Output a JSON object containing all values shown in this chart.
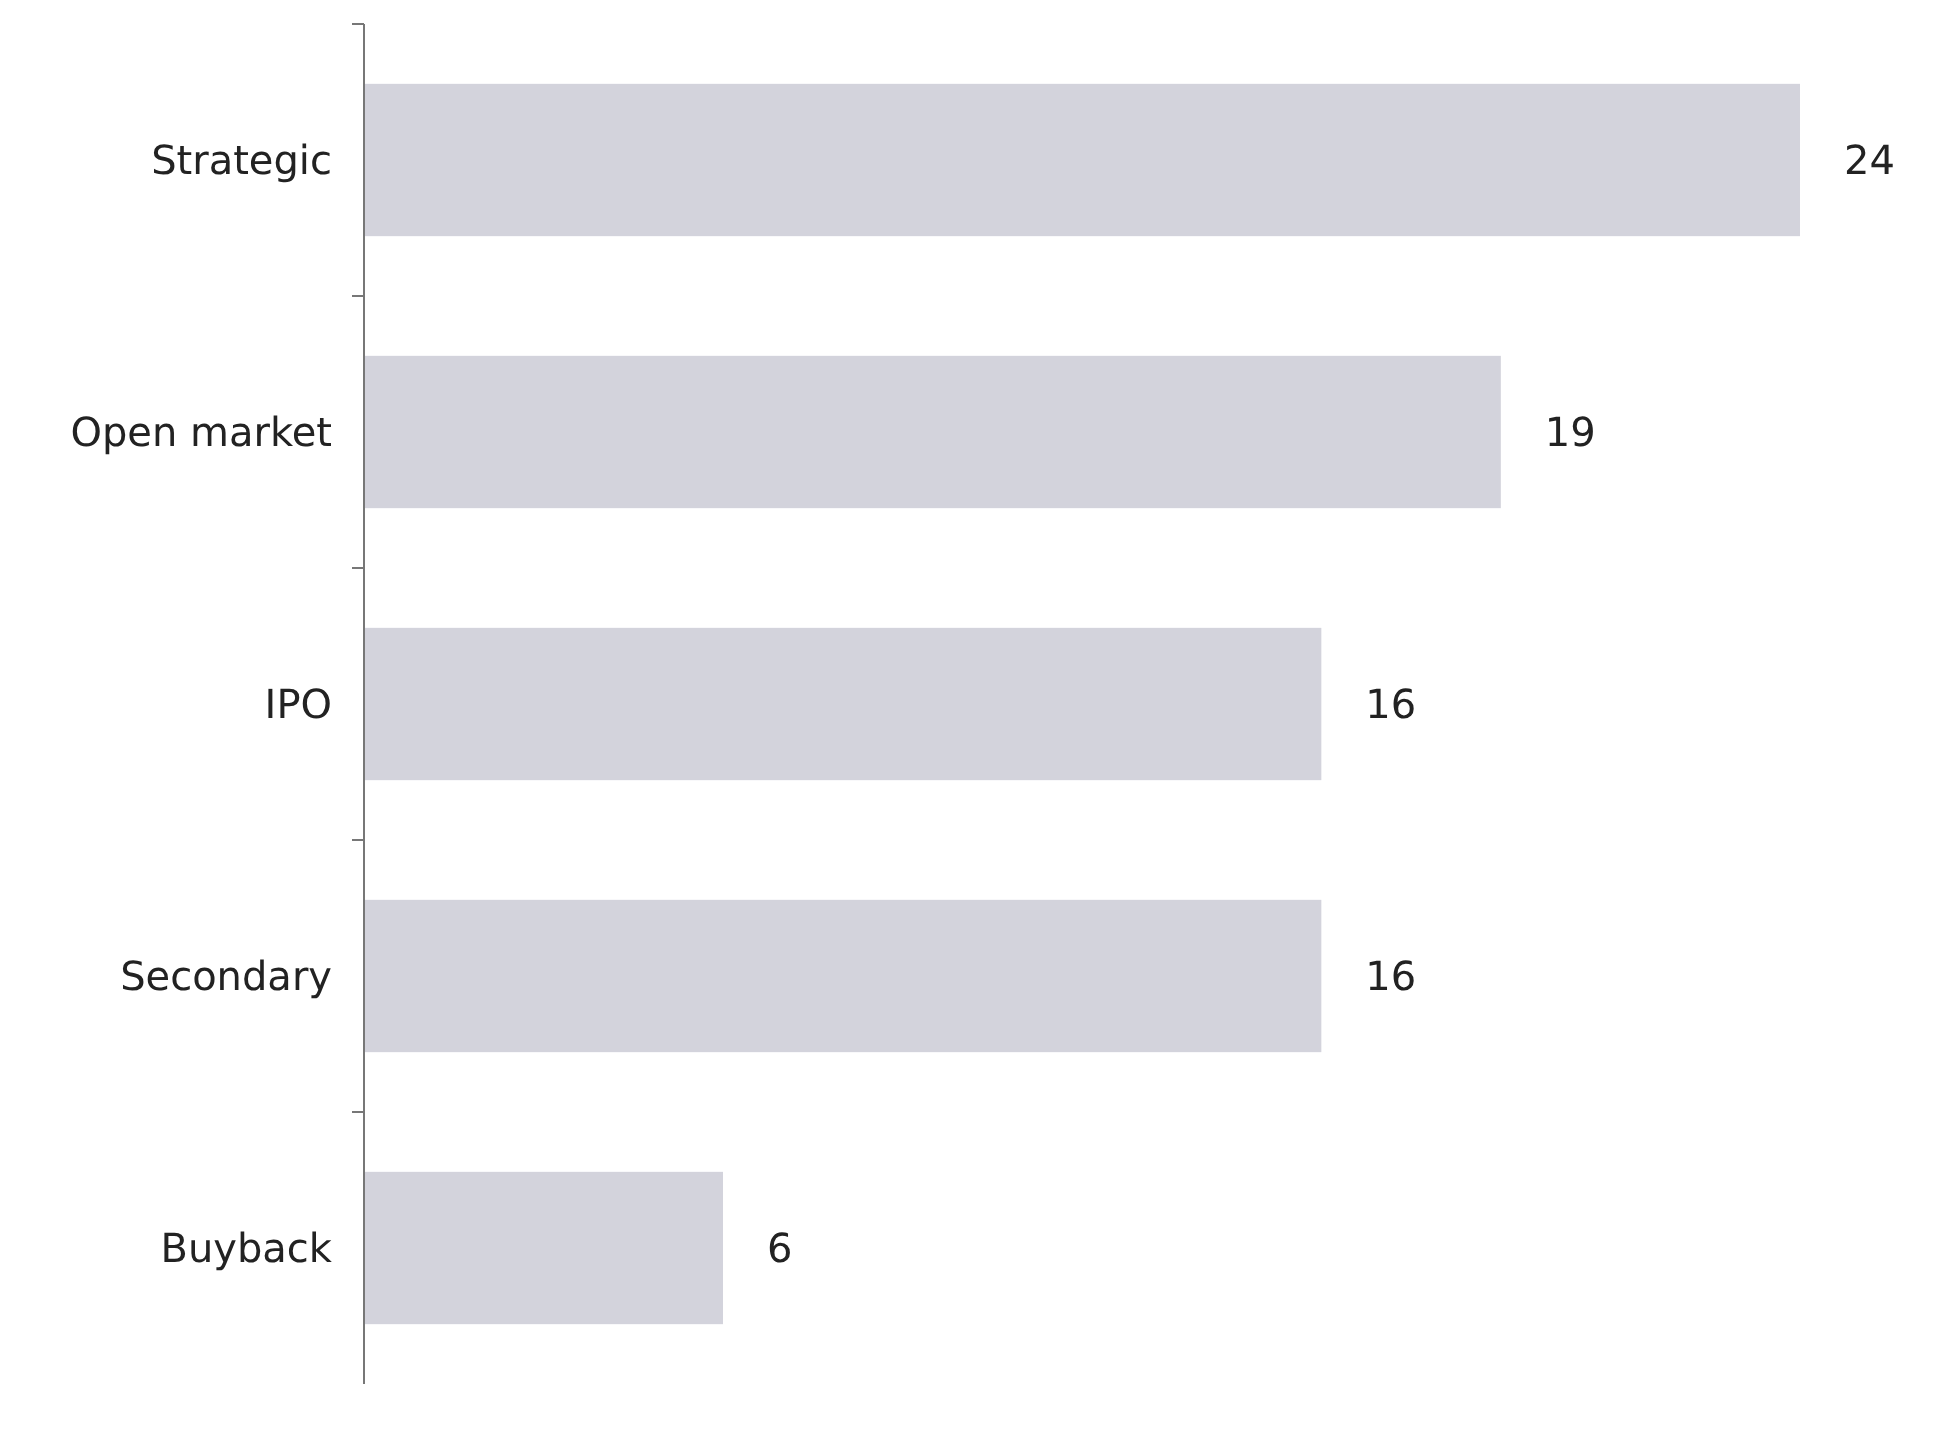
{
  "chart_data": {
    "type": "bar",
    "orientation": "horizontal",
    "categories": [
      "Strategic",
      "Open market",
      "IPO",
      "Secondary",
      "Buyback"
    ],
    "values": [
      24,
      19,
      16,
      16,
      6
    ],
    "color": "#d3d3dc",
    "data_labels": true
  }
}
